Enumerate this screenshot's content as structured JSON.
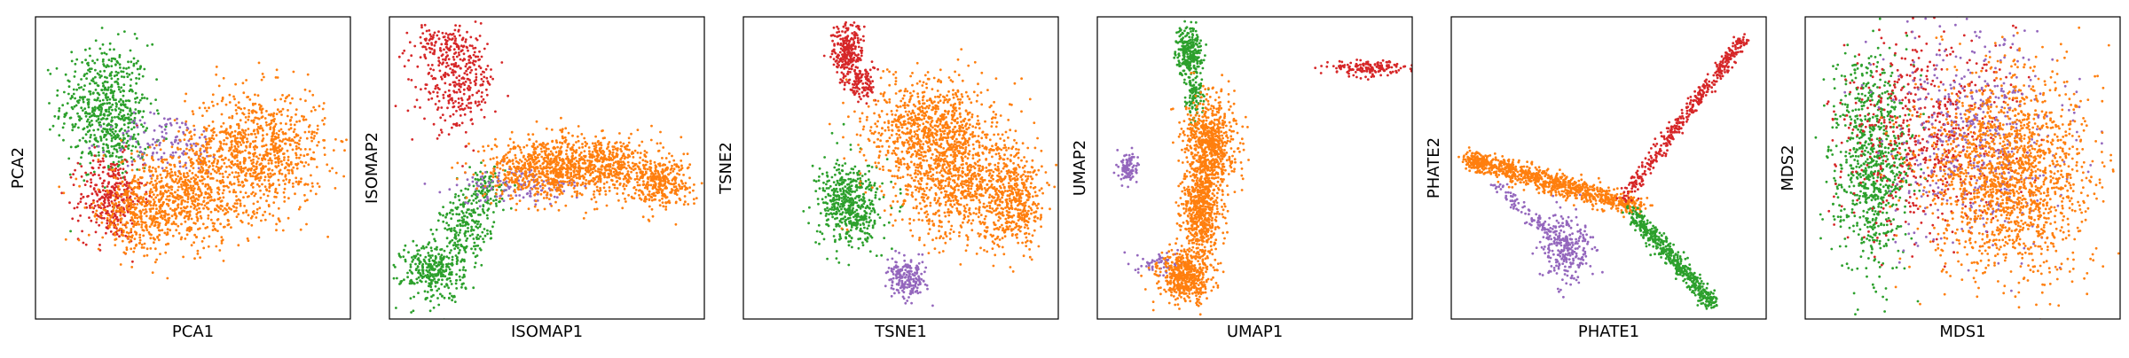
{
  "colors": {
    "green": "#2ca02c",
    "orange": "#ff7f0e",
    "red": "#d62728",
    "purple": "#9467bd"
  },
  "chart_data": [
    {
      "type": "scatter",
      "title": "",
      "xlabel": "PCA1",
      "ylabel": "PCA2",
      "xlim": [
        0,
        1
      ],
      "ylim": [
        0,
        1
      ],
      "grid": false,
      "legend": "none",
      "series": [
        {
          "color": "green",
          "clusters": [
            {
              "x": 0.22,
              "y": 0.71,
              "sx": 0.07,
              "sy": 0.1,
              "n": 520
            },
            {
              "x": 0.27,
              "y": 0.6,
              "sx": 0.04,
              "sy": 0.06,
              "n": 120
            }
          ]
        },
        {
          "color": "red",
          "clusters": [
            {
              "x": 0.24,
              "y": 0.4,
              "sx": 0.05,
              "sy": 0.07,
              "n": 340
            }
          ]
        },
        {
          "color": "purple",
          "clusters": [
            {
              "x": 0.42,
              "y": 0.58,
              "sx": 0.09,
              "sy": 0.05,
              "n": 130
            }
          ]
        },
        {
          "color": "orange",
          "clusters": [
            {
              "x": 0.7,
              "y": 0.56,
              "sx": 0.11,
              "sy": 0.1,
              "n": 900
            },
            {
              "x": 0.46,
              "y": 0.4,
              "sx": 0.12,
              "sy": 0.08,
              "n": 700
            },
            {
              "x": 0.32,
              "y": 0.34,
              "sx": 0.06,
              "sy": 0.06,
              "n": 250
            }
          ]
        }
      ]
    },
    {
      "type": "scatter",
      "title": "",
      "xlabel": "ISOMAP1",
      "ylabel": "ISOMAP2",
      "xlim": [
        0,
        1
      ],
      "ylim": [
        0,
        1
      ],
      "grid": false,
      "legend": "none",
      "series": [
        {
          "color": "red",
          "clusters": [
            {
              "x": 0.22,
              "y": 0.78,
              "sx": 0.06,
              "sy": 0.08,
              "n": 300
            },
            {
              "x": 0.17,
              "y": 0.9,
              "sx": 0.05,
              "sy": 0.04,
              "n": 120
            }
          ]
        },
        {
          "color": "green",
          "clusters": [
            {
              "x": 0.14,
              "y": 0.16,
              "sx": 0.05,
              "sy": 0.05,
              "n": 320
            },
            {
              "x": 0.24,
              "y": 0.3,
              "sx": 0.04,
              "sy": 0.06,
              "n": 200
            },
            {
              "x": 0.31,
              "y": 0.42,
              "sx": 0.03,
              "sy": 0.04,
              "n": 100
            }
          ]
        },
        {
          "color": "purple",
          "clusters": [
            {
              "x": 0.42,
              "y": 0.44,
              "sx": 0.1,
              "sy": 0.03,
              "n": 140
            }
          ]
        },
        {
          "color": "orange",
          "clusters": [
            {
              "x": 0.48,
              "y": 0.5,
              "sx": 0.09,
              "sy": 0.05,
              "n": 600
            },
            {
              "x": 0.68,
              "y": 0.51,
              "sx": 0.09,
              "sy": 0.05,
              "n": 550
            },
            {
              "x": 0.86,
              "y": 0.45,
              "sx": 0.05,
              "sy": 0.04,
              "n": 300
            }
          ]
        }
      ]
    },
    {
      "type": "scatter",
      "title": "",
      "xlabel": "TSNE1",
      "ylabel": "TSNE2",
      "xlim": [
        0,
        1
      ],
      "ylim": [
        0,
        1
      ],
      "grid": false,
      "legend": "none",
      "series": [
        {
          "color": "red",
          "clusters": [
            {
              "x": 0.33,
              "y": 0.88,
              "sx": 0.025,
              "sy": 0.05,
              "n": 260
            },
            {
              "x": 0.38,
              "y": 0.78,
              "sx": 0.02,
              "sy": 0.03,
              "n": 100
            }
          ]
        },
        {
          "color": "green",
          "clusters": [
            {
              "x": 0.34,
              "y": 0.38,
              "sx": 0.05,
              "sy": 0.07,
              "n": 520
            }
          ]
        },
        {
          "color": "purple",
          "clusters": [
            {
              "x": 0.52,
              "y": 0.13,
              "sx": 0.03,
              "sy": 0.03,
              "n": 200
            }
          ]
        },
        {
          "color": "orange",
          "clusters": [
            {
              "x": 0.6,
              "y": 0.64,
              "sx": 0.1,
              "sy": 0.08,
              "n": 800
            },
            {
              "x": 0.7,
              "y": 0.44,
              "sx": 0.12,
              "sy": 0.09,
              "n": 900
            },
            {
              "x": 0.87,
              "y": 0.37,
              "sx": 0.04,
              "sy": 0.07,
              "n": 300
            }
          ]
        }
      ]
    },
    {
      "type": "scatter",
      "title": "",
      "xlabel": "UMAP1",
      "ylabel": "UMAP2",
      "xlim": [
        0,
        1
      ],
      "ylim": [
        0,
        1
      ],
      "grid": false,
      "legend": "none",
      "series": [
        {
          "color": "green",
          "clusters": [
            {
              "x": 0.29,
              "y": 0.89,
              "sx": 0.02,
              "sy": 0.04,
              "n": 260
            },
            {
              "x": 0.31,
              "y": 0.75,
              "sx": 0.015,
              "sy": 0.05,
              "n": 120
            }
          ]
        },
        {
          "color": "red",
          "clusters": [
            {
              "x": 0.86,
              "y": 0.83,
              "sx": 0.06,
              "sy": 0.012,
              "n": 160
            }
          ]
        },
        {
          "color": "purple",
          "clusters": [
            {
              "x": 0.1,
              "y": 0.5,
              "sx": 0.015,
              "sy": 0.025,
              "n": 100
            },
            {
              "x": 0.2,
              "y": 0.18,
              "sx": 0.04,
              "sy": 0.02,
              "n": 60
            }
          ]
        },
        {
          "color": "orange",
          "clusters": [
            {
              "x": 0.36,
              "y": 0.58,
              "sx": 0.04,
              "sy": 0.08,
              "n": 700
            },
            {
              "x": 0.33,
              "y": 0.36,
              "sx": 0.03,
              "sy": 0.08,
              "n": 600
            },
            {
              "x": 0.28,
              "y": 0.14,
              "sx": 0.04,
              "sy": 0.04,
              "n": 500
            }
          ]
        }
      ]
    },
    {
      "type": "scatter",
      "title": "",
      "xlabel": "PHATE1",
      "ylabel": "PHATE2",
      "xlim": [
        0,
        1
      ],
      "ylim": [
        0,
        1
      ],
      "grid": false,
      "legend": "none",
      "series": [
        {
          "color": "orange",
          "clusters": [
            {
              "x": 0.08,
              "y": 0.52,
              "sx": 0.02,
              "sy": 0.012,
              "n": 80
            }
          ],
          "trails": [
            {
              "from": [
                0.05,
                0.53
              ],
              "to": [
                0.6,
                0.37
              ],
              "spread": 0.018,
              "n": 900
            }
          ]
        },
        {
          "color": "red",
          "trails": [
            {
              "from": [
                0.55,
                0.4
              ],
              "to": [
                0.93,
                0.93
              ],
              "spread": 0.012,
              "n": 420
            }
          ]
        },
        {
          "color": "green",
          "trails": [
            {
              "from": [
                0.57,
                0.36
              ],
              "to": [
                0.83,
                0.05
              ],
              "spread": 0.014,
              "n": 500
            }
          ]
        },
        {
          "color": "purple",
          "clusters": [
            {
              "x": 0.37,
              "y": 0.24,
              "sx": 0.04,
              "sy": 0.06,
              "n": 260
            }
          ],
          "trails": [
            {
              "from": [
                0.14,
                0.45
              ],
              "to": [
                0.34,
                0.25
              ],
              "spread": 0.012,
              "n": 100
            }
          ]
        }
      ]
    },
    {
      "type": "scatter",
      "title": "",
      "xlabel": "MDS1",
      "ylabel": "MDS2",
      "xlim": [
        0,
        1
      ],
      "ylim": [
        0,
        1
      ],
      "grid": false,
      "legend": "none",
      "series": [
        {
          "color": "green",
          "clusters": [
            {
              "x": 0.21,
              "y": 0.52,
              "sx": 0.06,
              "sy": 0.17,
              "n": 800
            }
          ]
        },
        {
          "color": "red",
          "clusters": [
            {
              "x": 0.38,
              "y": 0.62,
              "sx": 0.14,
              "sy": 0.17,
              "n": 600
            }
          ]
        },
        {
          "color": "purple",
          "clusters": [
            {
              "x": 0.55,
              "y": 0.6,
              "sx": 0.14,
              "sy": 0.17,
              "n": 500
            }
          ]
        },
        {
          "color": "orange",
          "clusters": [
            {
              "x": 0.64,
              "y": 0.48,
              "sx": 0.13,
              "sy": 0.17,
              "n": 1700
            }
          ]
        }
      ]
    }
  ]
}
